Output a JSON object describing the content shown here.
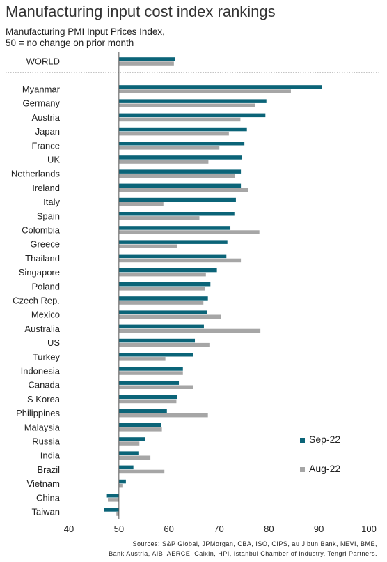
{
  "title": "Manufacturing input cost index rankings",
  "subtitle_line1": "Manufacturing PMI Input Prices Index,",
  "subtitle_line2": "50 = no change on prior month",
  "sources_line1": "Sources: S&P Global, JPMorgan, CBA, ISO, CIPS, au Jibun Bank, NEVI, BME,",
  "sources_line2": "Bank Austria, AIB, AERCE, Caixin, HPI, Istanbul Chamber of Industry, Tengri Partners.",
  "colors": {
    "sep": "#0b6478",
    "aug": "#a6a6a6",
    "axis": "#555555",
    "divider": "#888888"
  },
  "chart_data": {
    "type": "bar",
    "orientation": "horizontal",
    "title": "Manufacturing input cost index rankings",
    "baseline": 50,
    "xlim": [
      40,
      100
    ],
    "xticks": [
      40,
      50,
      60,
      70,
      80,
      90,
      100
    ],
    "legend": "right",
    "series_names": [
      "Sep-22",
      "Aug-22"
    ],
    "categories": [
      "WORLD",
      "Myanmar",
      "Germany",
      "Austria",
      "Japan",
      "France",
      "UK",
      "Netherlands",
      "Ireland",
      "Italy",
      "Spain",
      "Colombia",
      "Greece",
      "Thailand",
      "Singapore",
      "Poland",
      "Czech Rep.",
      "Mexico",
      "Australia",
      "US",
      "Turkey",
      "Indonesia",
      "Canada",
      "S Korea",
      "Philippines",
      "Malaysia",
      "Russia",
      "India",
      "Brazil",
      "Vietnam",
      "China",
      "Taiwan"
    ],
    "series": [
      {
        "name": "Sep-22",
        "values": [
          61.2,
          90.6,
          79.5,
          79.3,
          75.6,
          75.1,
          74.6,
          74.4,
          74.4,
          73.4,
          73.1,
          72.3,
          71.7,
          71.5,
          69.6,
          68.3,
          67.8,
          67.6,
          67.0,
          65.2,
          64.9,
          62.8,
          62.0,
          61.6,
          59.6,
          58.5,
          55.2,
          53.9,
          52.9,
          51.4,
          47.6,
          47.1
        ]
      },
      {
        "name": "Aug-22",
        "values": [
          61.0,
          84.4,
          77.3,
          74.3,
          72.0,
          70.1,
          67.9,
          73.2,
          75.8,
          58.9,
          66.1,
          78.1,
          61.7,
          74.4,
          67.4,
          67.2,
          66.9,
          70.4,
          78.3,
          68.1,
          59.3,
          62.8,
          64.9,
          61.5,
          67.8,
          58.6,
          54.1,
          56.3,
          59.1,
          50.7,
          47.8,
          49.5
        ]
      }
    ]
  }
}
